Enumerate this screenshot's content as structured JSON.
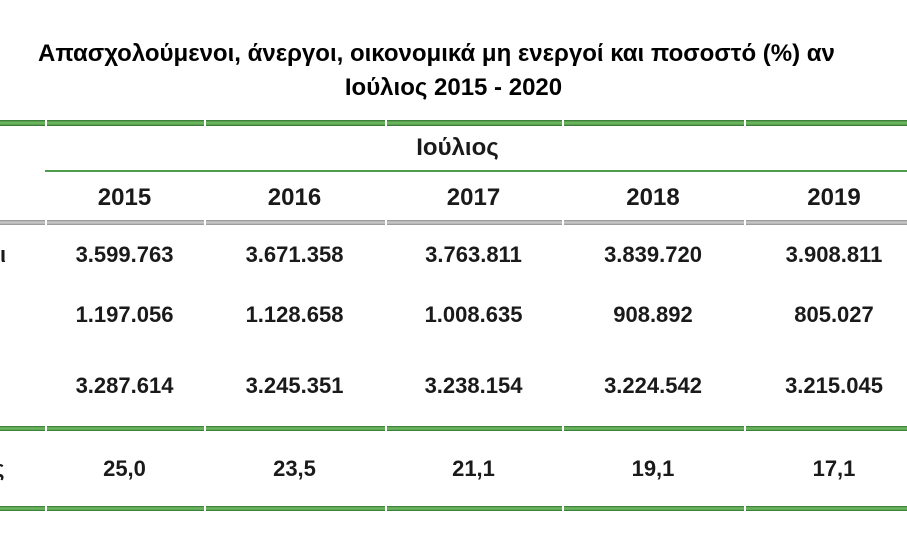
{
  "title": {
    "line1": "Απασχολούμενοι, άνεργοι, οικονομικά μη ενεργοί και ποσοστό (%) αν",
    "line2": "Ιούλιος 2015 - 2020"
  },
  "chart_data": {
    "type": "table",
    "title_visible": "Απασχολούμενοι, άνεργοι, οικονομικά μη ενεργοί και ποσοστό (%) αν",
    "subtitle": "Ιούλιος 2015 - 2020",
    "column_group_label": "Ιούλιος",
    "columns": [
      "2015",
      "2016",
      "2017",
      "2018",
      "2019"
    ],
    "rows": [
      {
        "label_visible": "ι",
        "values": [
          "3.599.763",
          "3.671.358",
          "3.763.811",
          "3.839.720",
          "3.908.811"
        ]
      },
      {
        "label_visible": "",
        "values": [
          "1.197.056",
          "1.128.658",
          "1.008.635",
          "908.892",
          "805.027"
        ]
      },
      {
        "label_visible": "",
        "values": [
          "3.287.614",
          "3.245.351",
          "3.238.154",
          "3.224.542",
          "3.215.045"
        ]
      },
      {
        "label_visible": "ς",
        "values": [
          "25,0",
          "23,5",
          "21,1",
          "19,1",
          "17,1"
        ]
      }
    ],
    "layout_notes": "Row-label column on the left and the 2020 column are cropped off by the screenshot edges; grid off; green band borders above header, above rate row and at table bottom; gray band under year header row"
  },
  "colors": {
    "table_green_dark": "#2e6f2e",
    "table_green_light": "#69b45c",
    "header_underline_green": "#4f9d4f",
    "gray_border": "#8f8f8f",
    "gray_border_light": "#c6c6c6",
    "text": "#1a1a1a"
  }
}
